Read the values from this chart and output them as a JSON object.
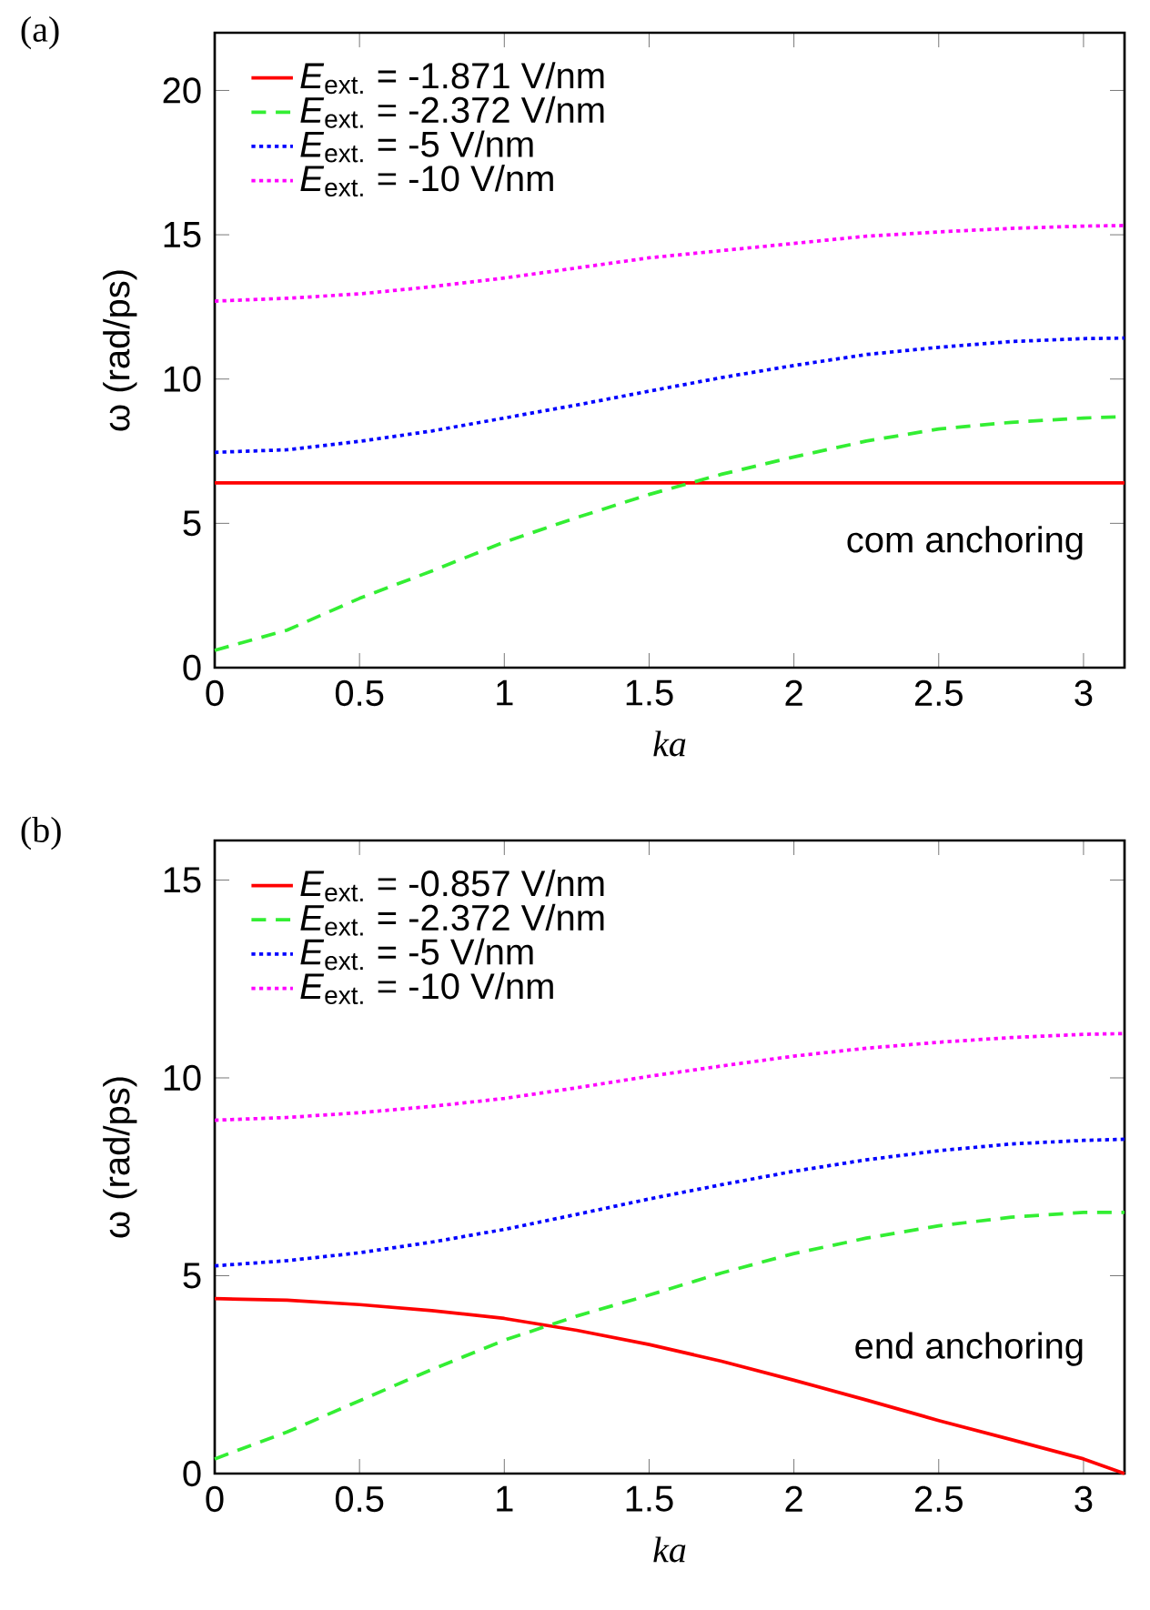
{
  "chart_data": [
    {
      "type": "line",
      "xlabel": "ka",
      "ylabel": "ω (rad/ps)",
      "annotations": [
        "(a)",
        "com anchoring"
      ],
      "legend": "top left",
      "grid": false,
      "x": [
        0,
        0.25,
        0.5,
        0.75,
        1,
        1.25,
        1.5,
        1.75,
        2,
        2.25,
        2.5,
        2.75,
        3,
        3.1416
      ],
      "xlim": [
        0,
        3.1416
      ],
      "xticks": [
        0,
        0.5,
        1,
        1.5,
        2,
        2.5,
        3
      ],
      "ylim": [
        0,
        22
      ],
      "yticks": [
        0,
        5,
        10,
        15,
        20
      ],
      "series": [
        {
          "name": "*E*$_{ext.}$ = -1.871 V/nm",
          "color": "#ff0000",
          "line_style": "solid",
          "values": [
            6.4,
            6.4,
            6.4,
            6.4,
            6.4,
            6.4,
            6.4,
            6.4,
            6.4,
            6.4,
            6.4,
            6.4,
            6.4,
            6.4
          ]
        },
        {
          "name": "*E*$_{ext.}$ = -2.372 V/nm",
          "color": "#33ee33",
          "line_style": "dashed",
          "values": [
            0.6,
            1.3,
            2.4,
            3.35,
            4.35,
            5.2,
            6.0,
            6.7,
            7.3,
            7.85,
            8.27,
            8.5,
            8.65,
            8.7
          ]
        },
        {
          "name": "*E*$_{ext.}$ = -5 V/nm",
          "color": "#0000ff",
          "line_style": "dotted",
          "values": [
            7.46,
            7.55,
            7.84,
            8.2,
            8.65,
            9.1,
            9.58,
            10.05,
            10.47,
            10.85,
            11.1,
            11.3,
            11.4,
            11.42
          ]
        },
        {
          "name": "*E*$_{ext.}$ = -10 V/nm",
          "color": "#ff00ff",
          "line_style": "dotted",
          "values": [
            12.7,
            12.8,
            12.95,
            13.2,
            13.5,
            13.85,
            14.2,
            14.45,
            14.7,
            14.95,
            15.1,
            15.22,
            15.3,
            15.32
          ]
        }
      ]
    },
    {
      "type": "line",
      "xlabel": "ka",
      "ylabel": "ω (rad/ps)",
      "annotations": [
        "(b)",
        "end anchoring"
      ],
      "legend": "top left",
      "grid": false,
      "x": [
        0,
        0.25,
        0.5,
        0.75,
        1,
        1.25,
        1.5,
        1.75,
        2,
        2.25,
        2.5,
        2.75,
        3,
        3.1416
      ],
      "xlim": [
        0,
        3.1416
      ],
      "xticks": [
        0,
        0.5,
        1,
        1.5,
        2,
        2.5,
        3
      ],
      "ylim": [
        0,
        16
      ],
      "yticks": [
        0,
        5,
        10,
        15
      ],
      "series": [
        {
          "name": "*E*$_{ext.}$ = -0.857 V/nm",
          "color": "#ff0000",
          "line_style": "solid",
          "values": [
            4.42,
            4.38,
            4.27,
            4.12,
            3.92,
            3.62,
            3.26,
            2.84,
            2.36,
            1.86,
            1.34,
            0.86,
            0.37,
            0
          ]
        },
        {
          "name": "*E*$_{ext.}$ = -2.372 V/nm",
          "color": "#33ee33",
          "line_style": "dashed",
          "values": [
            0.37,
            1.05,
            1.84,
            2.63,
            3.37,
            3.98,
            4.51,
            5.07,
            5.56,
            5.95,
            6.26,
            6.48,
            6.6,
            6.6
          ]
        },
        {
          "name": "*E*$_{ext.}$ = -5 V/nm",
          "color": "#0000ff",
          "line_style": "dotted",
          "values": [
            5.25,
            5.38,
            5.58,
            5.85,
            6.17,
            6.55,
            6.94,
            7.3,
            7.64,
            7.93,
            8.16,
            8.33,
            8.42,
            8.45
          ]
        },
        {
          "name": "*E*$_{ext.}$ = -10 V/nm",
          "color": "#ff00ff",
          "line_style": "dotted",
          "values": [
            8.93,
            9.0,
            9.12,
            9.28,
            9.48,
            9.75,
            10.04,
            10.3,
            10.55,
            10.75,
            10.9,
            11.02,
            11.1,
            11.12
          ]
        }
      ]
    }
  ]
}
